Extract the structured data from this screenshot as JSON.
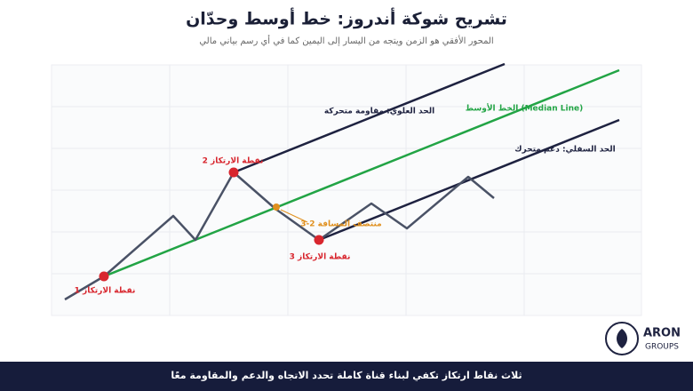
{
  "header": {
    "title": "تشريح شوكة أندروز: خط أوسط وحدّان",
    "subtitle": "المحور الأفقي هو الزمن ويتجه من اليسار إلى اليمين كما في أي رسم بياني مالي"
  },
  "diagram": {
    "upper_line_label": "الحد العلوي: مقاومة متحركة",
    "median_line_label": "الخط الأوسط (Median Line)",
    "lower_line_label": "الحد السفلي: دعم متحرك",
    "pivots": [
      "نقطة الارتكاز 1",
      "نقطة الارتكاز 2",
      "نقطة الارتكاز 3"
    ],
    "midpoint_label": "منتصف المسافة 2-3"
  },
  "logo": {
    "name": "ARON",
    "sub": "GROUPS"
  },
  "footer": {
    "text": "ثلاث نقاط ارتكاز تكفي لبناء قناة كاملة تحدد الاتجاه والدعم والمقاومة معًا"
  }
}
